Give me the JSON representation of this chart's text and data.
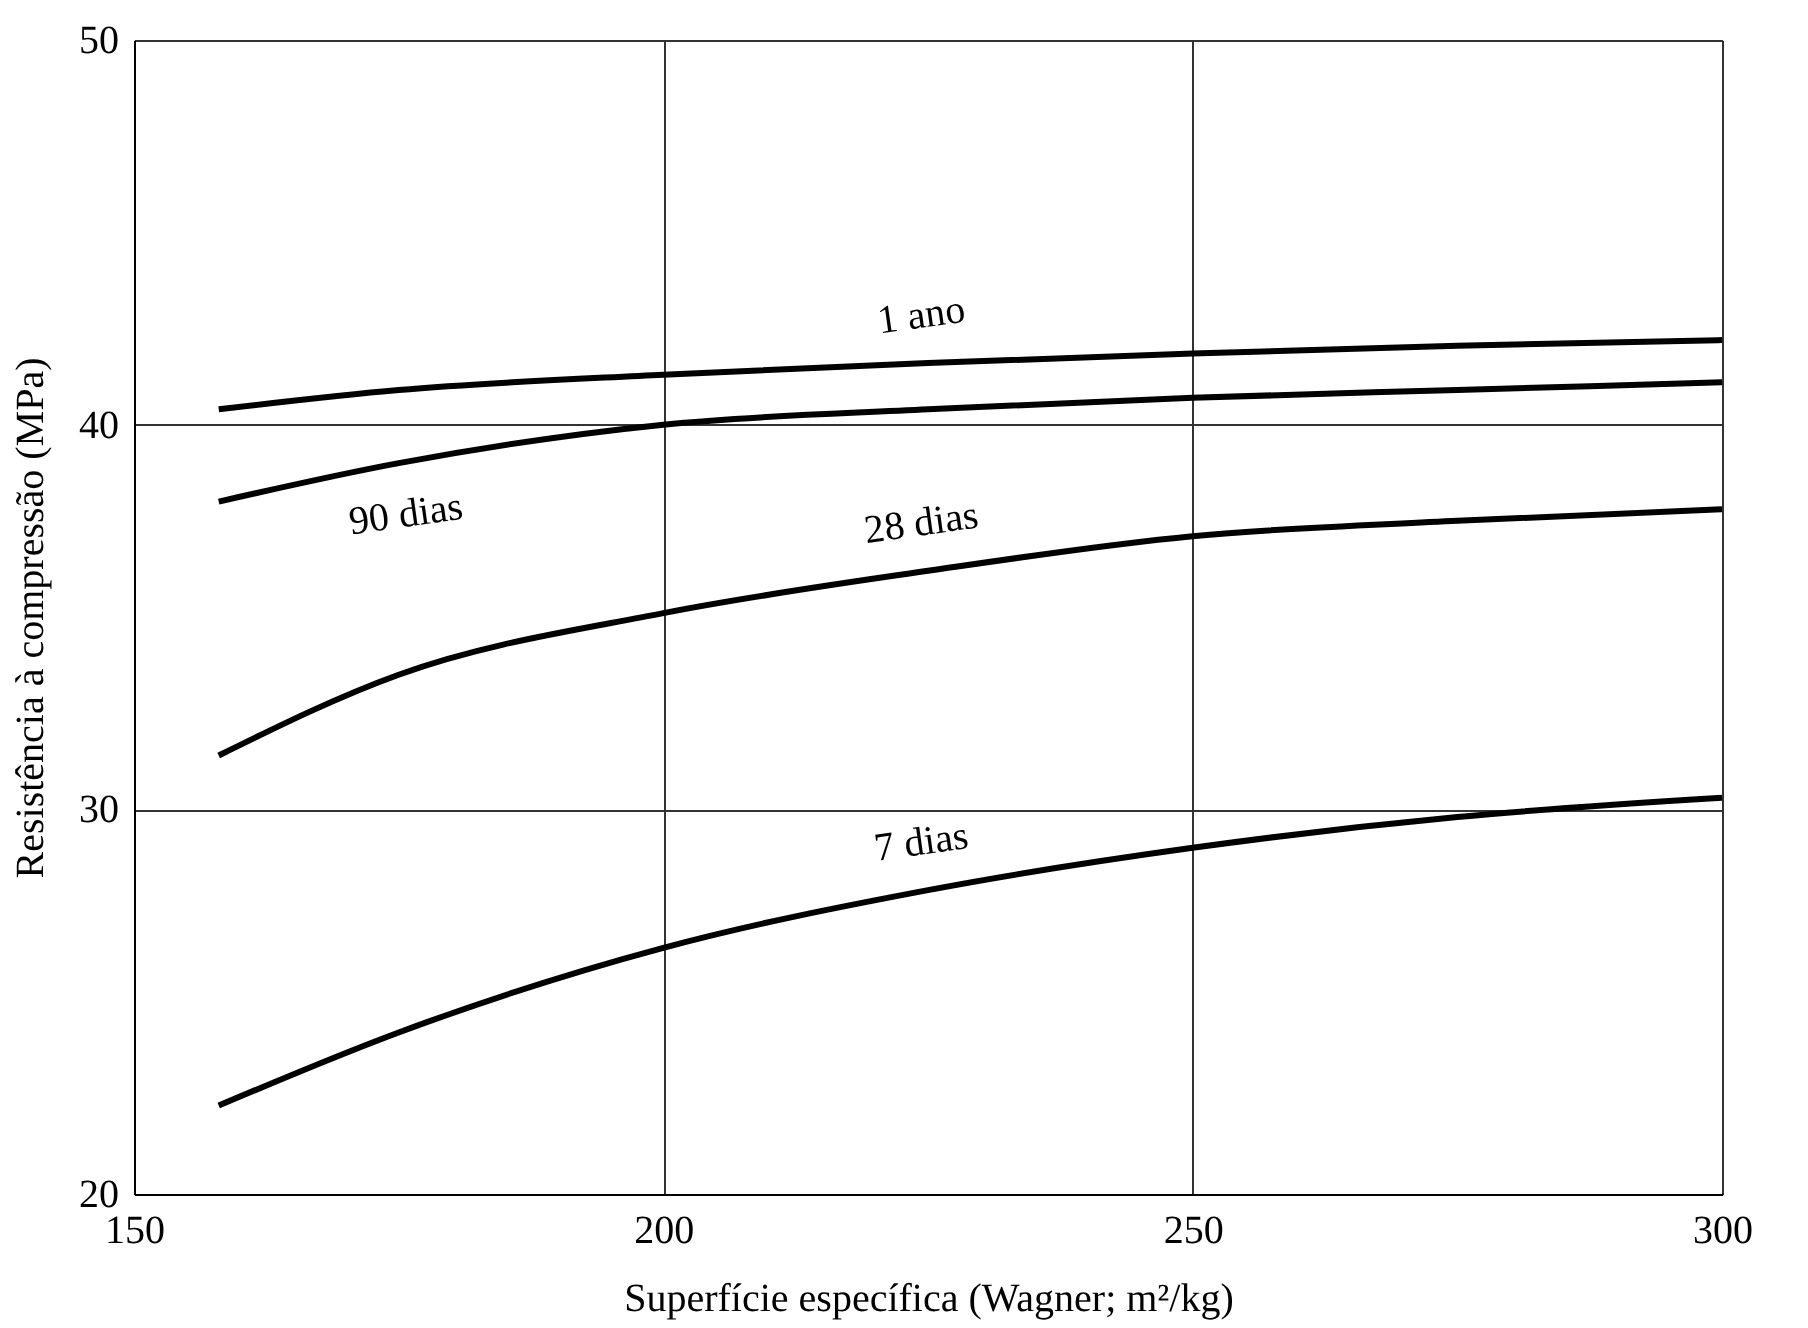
{
  "chart_data": {
    "type": "line",
    "xlabel": "Superfície específica (Wagner; m²/kg)",
    "ylabel": "Resistência à compressão (MPa)",
    "xlim": [
      150,
      300
    ],
    "xticks": [
      150,
      200,
      250,
      300
    ],
    "ylim": [
      20,
      50
    ],
    "yticks": [
      20,
      30,
      40,
      50
    ],
    "grid": true,
    "legend": false,
    "marker": "none",
    "line_style": "solid",
    "series": [
      {
        "name": "1 ano",
        "color": "#000000",
        "x": [
          158,
          175,
          200,
          225,
          250,
          275,
          300
        ],
        "values": [
          40.4,
          40.9,
          41.3,
          41.6,
          41.85,
          42.05,
          42.2
        ]
      },
      {
        "name": "90 dias",
        "color": "#000000",
        "x": [
          158,
          175,
          200,
          225,
          250,
          275,
          300
        ],
        "values": [
          38.0,
          39.0,
          40.0,
          40.4,
          40.7,
          40.9,
          41.1
        ]
      },
      {
        "name": "28 dias",
        "color": "#000000",
        "x": [
          158,
          175,
          200,
          225,
          250,
          275,
          300
        ],
        "values": [
          31.4,
          33.5,
          35.1,
          36.2,
          37.1,
          37.5,
          37.8
        ]
      },
      {
        "name": "7 dias",
        "color": "#000000",
        "x": [
          158,
          175,
          200,
          225,
          250,
          275,
          300
        ],
        "values": [
          22.3,
          24.2,
          26.4,
          27.9,
          29.0,
          29.8,
          30.3
        ]
      }
    ]
  }
}
